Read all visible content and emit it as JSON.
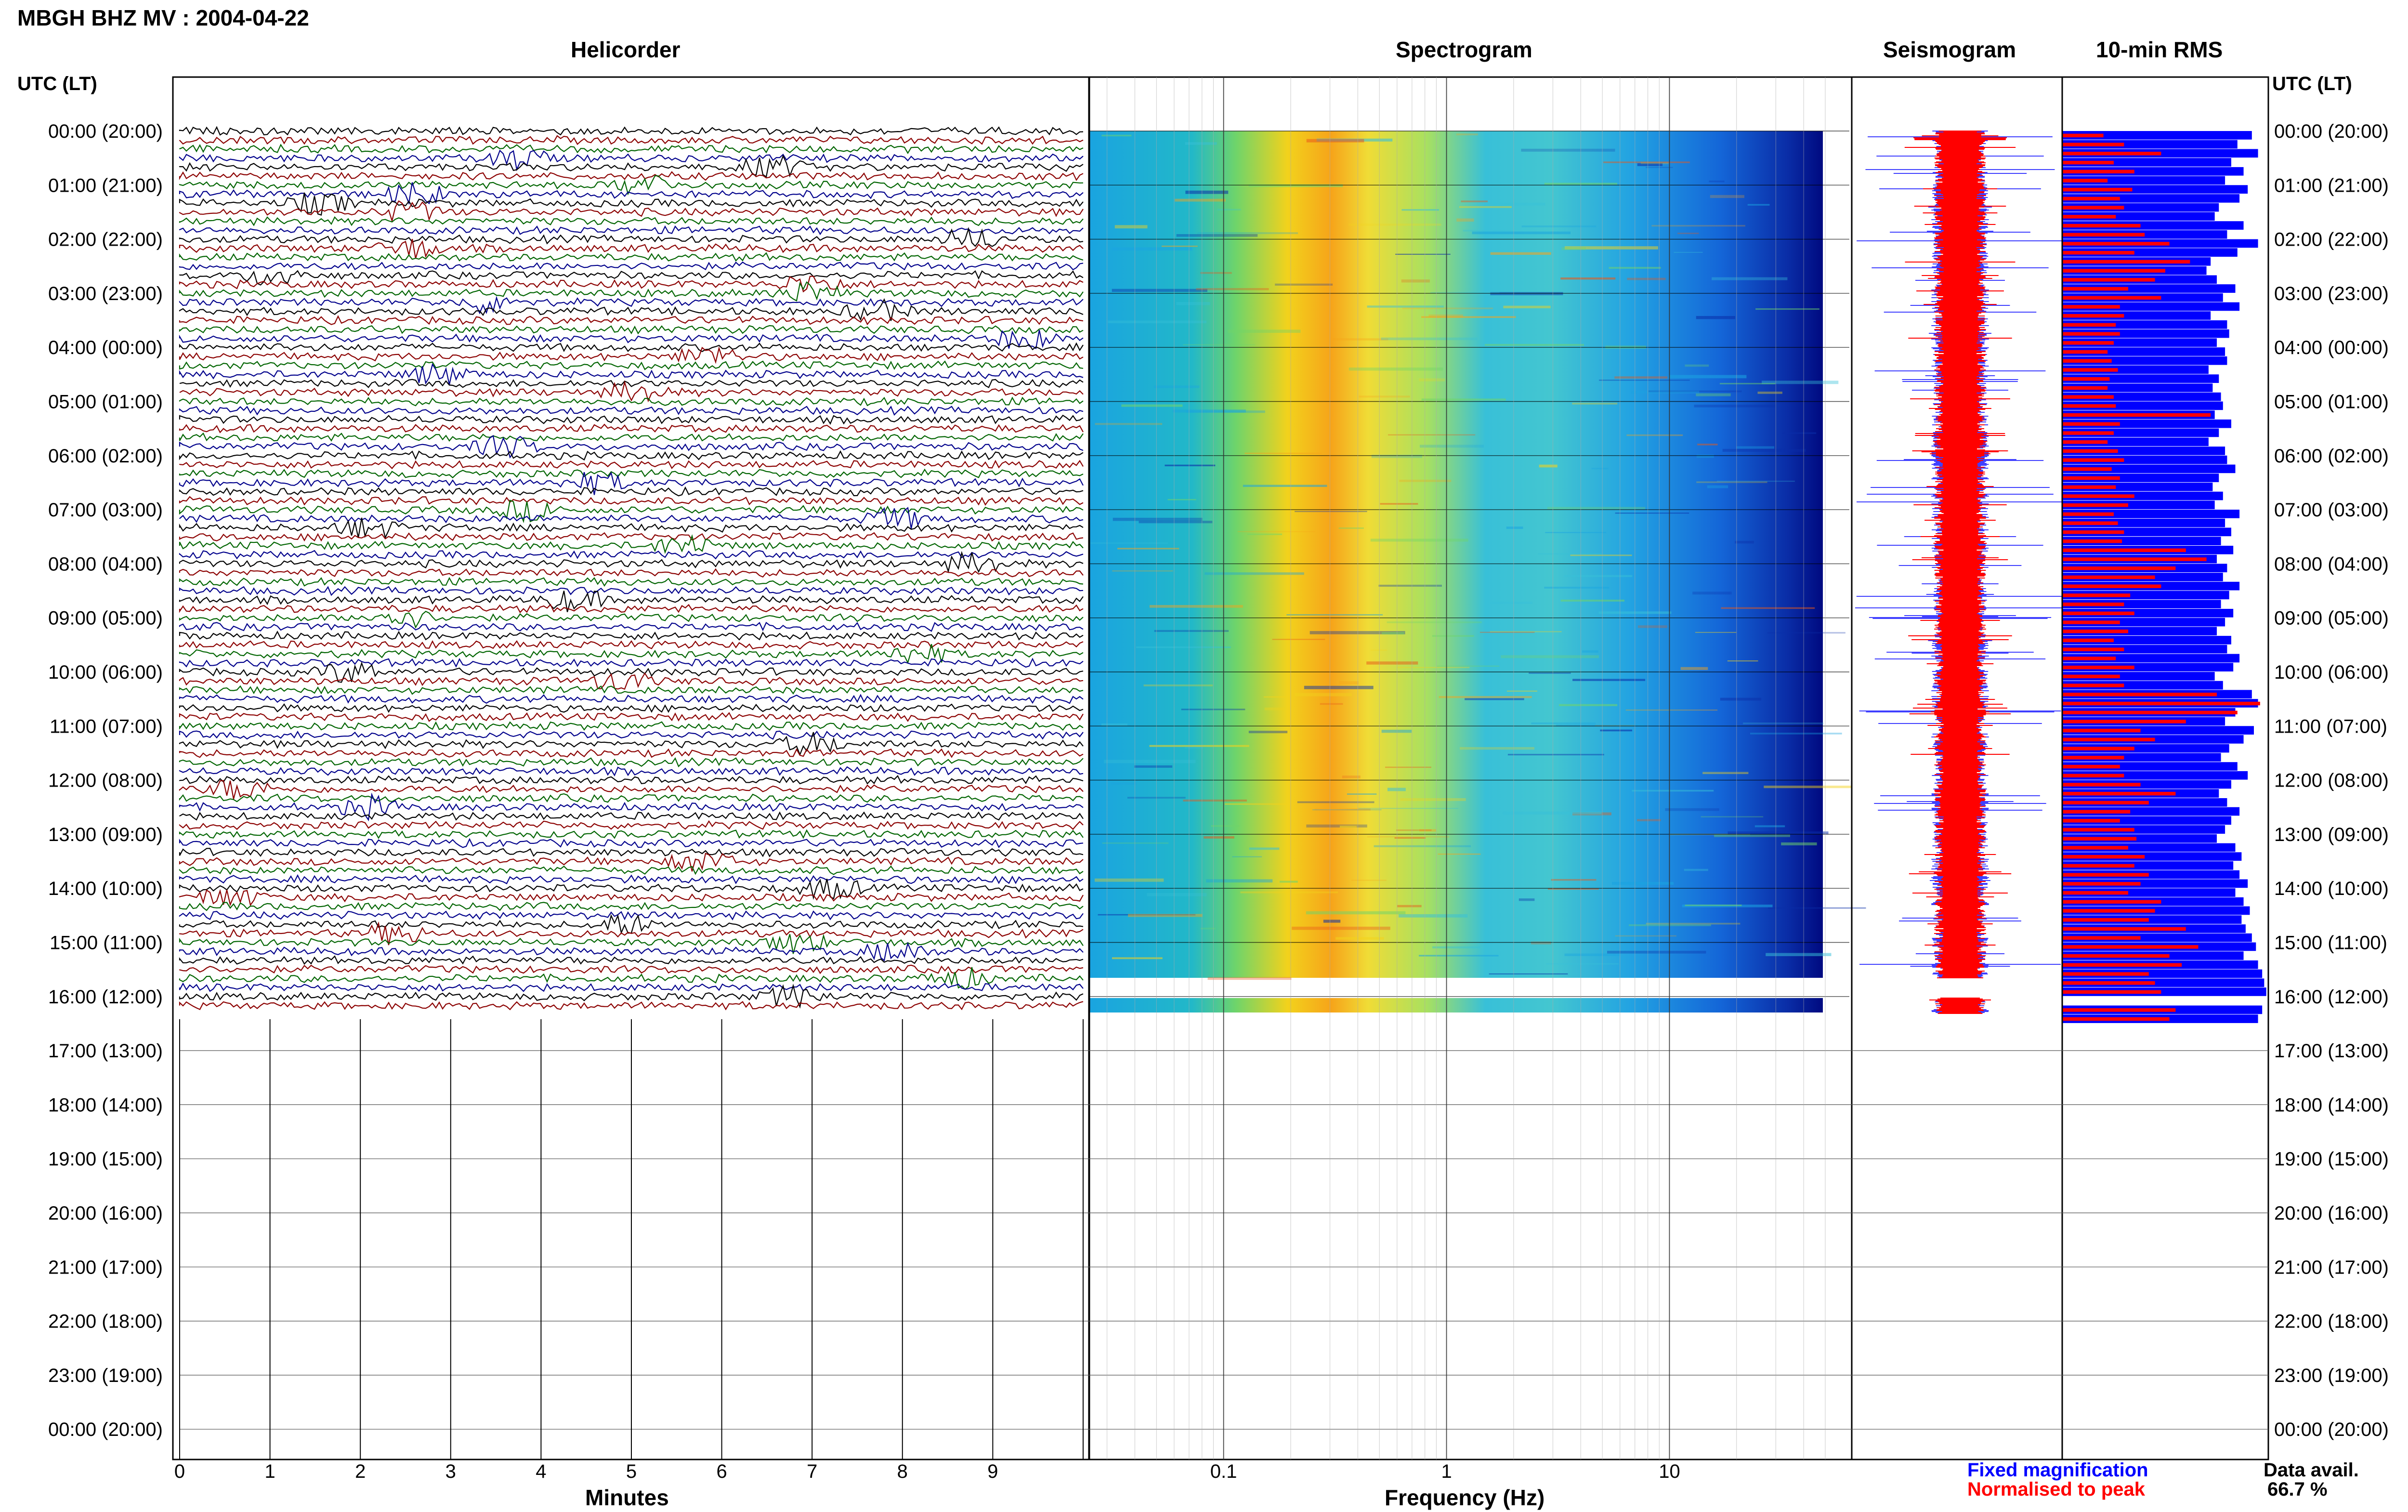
{
  "header": {
    "title": "MBGH BHZ MV : 2004-04-22",
    "time_axis_label_left": "UTC (LT)",
    "time_axis_label_right": "UTC (LT)"
  },
  "panels": {
    "helicorder": "Helicorder",
    "spectrogram": "Spectrogram",
    "seismogram": "Seismogram",
    "rms": "10-min RMS"
  },
  "legend": {
    "fixed": "Fixed magnification",
    "normalised": "Normalised to peak",
    "avail_label": "Data avail.",
    "avail_value": "66.7 %"
  },
  "colors": {
    "fixed": "#0000ff",
    "normalised": "#ff0000",
    "trace_cycle": [
      "#000000",
      "#8b0000",
      "#006400",
      "#00008b"
    ],
    "grid": "#000000"
  },
  "chart_data": {
    "type": "heatmap",
    "time_labels": [
      "00:00 (20:00)",
      "01:00 (21:00)",
      "02:00 (22:00)",
      "03:00 (23:00)",
      "04:00 (00:00)",
      "05:00 (01:00)",
      "06:00 (02:00)",
      "07:00 (03:00)",
      "08:00 (04:00)",
      "09:00 (05:00)",
      "10:00 (06:00)",
      "11:00 (07:00)",
      "12:00 (08:00)",
      "13:00 (09:00)",
      "14:00 (10:00)",
      "15:00 (11:00)",
      "16:00 (12:00)",
      "17:00 (13:00)",
      "18:00 (14:00)",
      "19:00 (15:00)",
      "20:00 (16:00)",
      "21:00 (17:00)",
      "22:00 (18:00)",
      "23:00 (19:00)",
      "00:00 (20:00)"
    ],
    "data_hours": 16.33,
    "helicorder": {
      "xlabel": "Minutes",
      "xlim": [
        0,
        10
      ],
      "ticks": [
        "0",
        "1",
        "2",
        "3",
        "4",
        "5",
        "6",
        "7",
        "8",
        "9"
      ],
      "lines_per_hour": 6
    },
    "spectrogram": {
      "xlabel": "Frequency (Hz)",
      "xscale": "log",
      "xlim": [
        0.025,
        50
      ],
      "ticks": [
        "0.1",
        "1",
        "10"
      ],
      "peak_band_hz": [
        0.2,
        0.35
      ]
    },
    "rms": {
      "series": [
        {
          "name": "Fixed magnification",
          "values": [
            0.92,
            0.85,
            0.95,
            0.82,
            0.88,
            0.79,
            0.9,
            0.86,
            0.76,
            0.74,
            0.88,
            0.8,
            0.95,
            0.85,
            0.72,
            0.7,
            0.75,
            0.84,
            0.78,
            0.86,
            0.72,
            0.8,
            0.81,
            0.75,
            0.79,
            0.8,
            0.71,
            0.76,
            0.73,
            0.77,
            0.78,
            0.74,
            0.82,
            0.76,
            0.71,
            0.79,
            0.8,
            0.84,
            0.76,
            0.73,
            0.78,
            0.74,
            0.86,
            0.79,
            0.82,
            0.77,
            0.83,
            0.75,
            0.8,
            0.78,
            0.86,
            0.81,
            0.77,
            0.83,
            0.79,
            0.75,
            0.82,
            0.8,
            0.86,
            0.83,
            0.74,
            0.78,
            0.92,
            0.95,
            0.84,
            0.79,
            0.93,
            0.88,
            0.81,
            0.77,
            0.85,
            0.9,
            0.82,
            0.76,
            0.8,
            0.86,
            0.82,
            0.79,
            0.75,
            0.84,
            0.87,
            0.83,
            0.86,
            0.9,
            0.84,
            0.88,
            0.91,
            0.87,
            0.89,
            0.92,
            0.94,
            0.88,
            0.95,
            0.97,
            0.98,
            0.99,
            0.0,
            0.97,
            0.95
          ]
        },
        {
          "name": "Normalised to peak",
          "values": [
            0.2,
            0.3,
            0.48,
            0.25,
            0.35,
            0.22,
            0.34,
            0.28,
            0.3,
            0.26,
            0.38,
            0.4,
            0.52,
            0.35,
            0.62,
            0.5,
            0.45,
            0.32,
            0.48,
            0.28,
            0.3,
            0.26,
            0.28,
            0.25,
            0.22,
            0.24,
            0.27,
            0.23,
            0.22,
            0.25,
            0.26,
            0.72,
            0.28,
            0.25,
            0.22,
            0.27,
            0.3,
            0.24,
            0.28,
            0.26,
            0.35,
            0.32,
            0.25,
            0.27,
            0.3,
            0.29,
            0.6,
            0.7,
            0.55,
            0.45,
            0.48,
            0.33,
            0.3,
            0.35,
            0.28,
            0.32,
            0.25,
            0.3,
            0.26,
            0.35,
            0.28,
            0.3,
            0.75,
            0.96,
            0.85,
            0.6,
            0.38,
            0.45,
            0.35,
            0.3,
            0.28,
            0.3,
            0.38,
            0.55,
            0.42,
            0.33,
            0.28,
            0.35,
            0.36,
            0.32,
            0.4,
            0.35,
            0.42,
            0.38,
            0.32,
            0.48,
            0.45,
            0.42,
            0.6,
            0.38,
            0.66,
            0.52,
            0.58,
            0.42,
            0.45,
            0.48,
            0.0,
            0.55,
            0.52
          ]
        }
      ]
    }
  }
}
